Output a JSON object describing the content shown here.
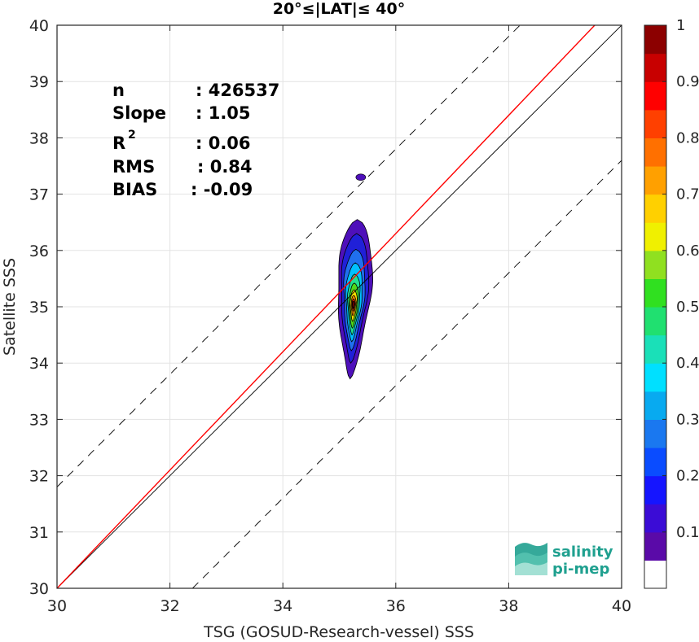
{
  "chart_data": {
    "type": "contour",
    "title": "20°≤|LAT|≤ 40°",
    "xlabel": "TSG (GOSUD-Research-vessel) SSS",
    "ylabel": "Satellite SSS",
    "xlim": [
      30,
      40
    ],
    "ylim": [
      30,
      40
    ],
    "xticks": [
      30,
      32,
      34,
      36,
      38,
      40
    ],
    "yticks": [
      30,
      31,
      32,
      33,
      34,
      35,
      36,
      37,
      38,
      39,
      40
    ],
    "grid": true,
    "stats": {
      "n": {
        "label": "n",
        "value": ": 426537"
      },
      "slope": {
        "label": "Slope",
        "value": ": 1.05"
      },
      "r2": {
        "label": "R",
        "sup": "2",
        "value": ": 0.06"
      },
      "rms": {
        "label": "RMS",
        "value": ": 0.84"
      },
      "bias": {
        "label": "BIAS",
        "value": ": -0.09"
      }
    },
    "reference_lines": {
      "identity": {
        "from": [
          30,
          30
        ],
        "to": [
          40,
          40
        ],
        "style": "solid",
        "color": "#000000"
      },
      "upper_bound": {
        "offset": 1.8,
        "style": "dashed",
        "color": "#000000"
      },
      "lower_bound": {
        "offset": -2.4,
        "style": "dashed",
        "color": "#000000"
      },
      "fit": {
        "from": [
          30,
          30.0
        ],
        "to": [
          40,
          40.5
        ],
        "style": "solid",
        "color": "#ff0000"
      }
    },
    "density_center": [
      35.25,
      35.05
    ],
    "contours": [
      {
        "level": 0.05,
        "color": "#4e10ba",
        "half_width": [
          0.33,
          0.83
        ],
        "y_range": [
          33.72,
          36.55
        ],
        "blob": {
          "x": 35.38,
          "y": 37.3
        }
      },
      {
        "level": 0.1,
        "color": "#2020d8",
        "half_width": [
          0.26,
          0.67
        ],
        "y_range": [
          34.0,
          36.3
        ]
      },
      {
        "level": 0.2,
        "color": "#2070ee",
        "half_width": [
          0.21,
          0.52
        ],
        "y_range": [
          34.22,
          36.02
        ]
      },
      {
        "level": 0.3,
        "color": "#00c0ff",
        "half_width": [
          0.16,
          0.4
        ],
        "y_range": [
          34.38,
          35.78
        ]
      },
      {
        "level": 0.4,
        "color": "#20e090",
        "half_width": [
          0.12,
          0.3
        ],
        "y_range": [
          34.5,
          35.58
        ]
      },
      {
        "level": 0.5,
        "color": "#50d818",
        "half_width": [
          0.095,
          0.22
        ],
        "y_range": [
          34.62,
          35.42
        ]
      },
      {
        "level": 0.6,
        "color": "#ffe000",
        "half_width": [
          0.07,
          0.16
        ],
        "y_range": [
          34.74,
          35.3
        ]
      },
      {
        "level": 0.7,
        "color": "#ff8c00",
        "half_width": [
          0.05,
          0.11
        ],
        "y_range": [
          34.84,
          35.2
        ]
      },
      {
        "level": 0.8,
        "color": "#e02000",
        "half_width": [
          0.032,
          0.07
        ],
        "y_range": [
          34.92,
          35.14
        ]
      },
      {
        "level": 0.9,
        "color": "#a00000",
        "half_width": [
          0.018,
          0.04
        ],
        "y_range": [
          34.97,
          35.1
        ]
      }
    ],
    "colorbar": {
      "ticks": [
        "0.1",
        "0.2",
        "0.3",
        "0.4",
        "0.5",
        "0.6",
        "0.7",
        "0.8",
        "0.9",
        "1"
      ],
      "range": [
        0,
        1
      ],
      "colors": [
        "#ffffff",
        "#5a0aa8",
        "#3b0cd6",
        "#1515ff",
        "#0a4cff",
        "#1a78f0",
        "#08aaf0",
        "#00e0ff",
        "#1ae0b8",
        "#20e070",
        "#30e020",
        "#90e020",
        "#f0f000",
        "#ffd000",
        "#ffa000",
        "#ff7000",
        "#ff4000",
        "#ff0000",
        "#c80000",
        "#8c0000"
      ]
    }
  },
  "logo": {
    "line1": "salinity",
    "line2": "pi-mep",
    "color": "#1fa08f"
  }
}
